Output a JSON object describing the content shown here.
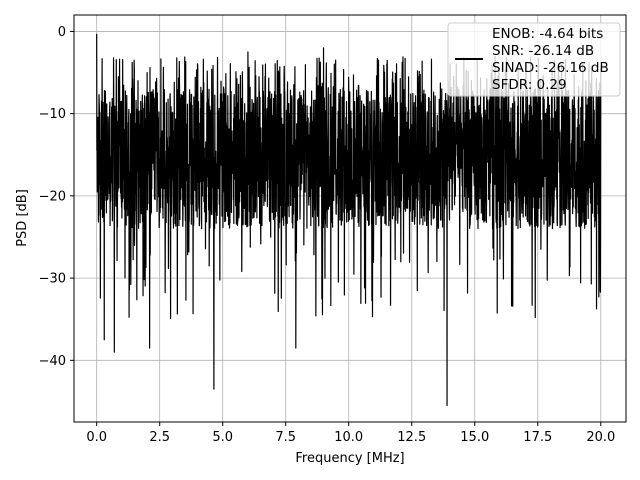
{
  "chart_data": {
    "type": "line",
    "title": "",
    "xlabel": "Frequency [MHz]",
    "ylabel": "PSD [dB]",
    "xlim": [
      -0.9,
      21.0
    ],
    "ylim": [
      -47.5,
      2.0
    ],
    "xticks": [
      0.0,
      2.5,
      5.0,
      7.5,
      10.0,
      12.5,
      15.0,
      17.5,
      20.0
    ],
    "xtick_labels": [
      "0.0",
      "2.5",
      "5.0",
      "7.5",
      "10.0",
      "12.5",
      "15.0",
      "17.5",
      "20.0"
    ],
    "yticks": [
      0,
      -10,
      -20,
      -30,
      -40
    ],
    "ytick_labels": [
      "0",
      "−10",
      "−20",
      "−30",
      "−40"
    ],
    "grid": true,
    "legend_position": "top-right",
    "series": [
      {
        "color": "#000000",
        "description": "dense noise-like PSD trace spanning 0 to 20 MHz, mostly between -25 dB and -5 dB",
        "x_range": [
          0.0,
          20.0
        ],
        "band": [
          -24,
          -7
        ],
        "peaks": [
          {
            "x": 0.0,
            "y": -0.3
          },
          {
            "x": 4.65,
            "y": -43.5
          },
          {
            "x": 13.9,
            "y": -45.5
          },
          {
            "x": 7.9,
            "y": -38.5
          },
          {
            "x": 0.3,
            "y": -37.5
          },
          {
            "x": 0.7,
            "y": -39.0
          },
          {
            "x": 2.1,
            "y": -38.5
          },
          {
            "x": 6.0,
            "y": -2.5
          },
          {
            "x": 9.0,
            "y": -2.0
          }
        ]
      }
    ],
    "legend_lines": [
      "ENOB: -4.64 bits",
      "SNR: -26.14 dB",
      "SINAD: -26.16 dB",
      "SFDR: 0.29"
    ]
  }
}
